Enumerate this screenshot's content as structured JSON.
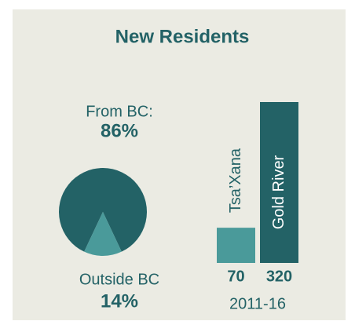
{
  "chart_data": [
    {
      "type": "pie",
      "title": "New Residents",
      "categories": [
        "From BC:",
        "Outside BC"
      ],
      "values": [
        86,
        14
      ],
      "value_labels": [
        "86%",
        "14%"
      ],
      "colors": [
        "#236266",
        "#4a9a9a"
      ]
    },
    {
      "type": "bar",
      "subtitle": "2011-16",
      "categories": [
        "Tsa’Xana",
        "Gold River"
      ],
      "values": [
        70,
        320
      ],
      "colors": [
        "#4a9a9a",
        "#236266"
      ]
    }
  ]
}
